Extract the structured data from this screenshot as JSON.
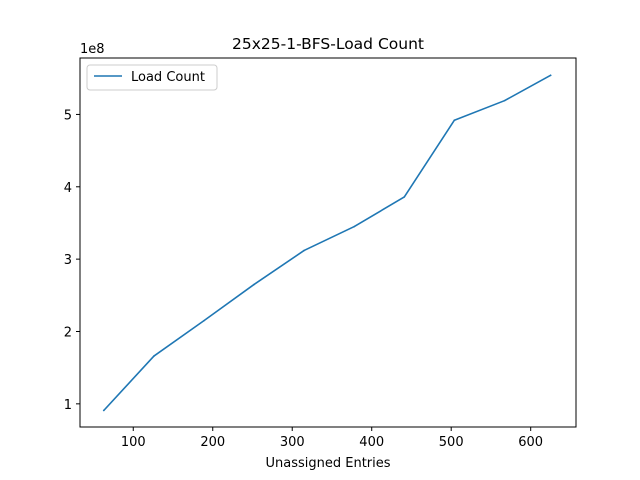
{
  "chart_data": {
    "type": "line",
    "title": "25x25-1-BFS-Load Count",
    "xlabel": "Unassigned Entries",
    "ylabel": "",
    "y_scale_label": "1e8",
    "y_multiplier": 100000000,
    "xlim": [
      33,
      657
    ],
    "ylim": [
      0.68,
      5.78
    ],
    "xticks": [
      100,
      200,
      300,
      400,
      500,
      600
    ],
    "xtick_labels": [
      "100",
      "200",
      "300",
      "400",
      "500",
      "600"
    ],
    "yticks": [
      1,
      2,
      3,
      4,
      5
    ],
    "ytick_labels": [
      "1",
      "2",
      "3",
      "4",
      "5"
    ],
    "legend_position": "upper-left",
    "grid": false,
    "series": [
      {
        "name": "Load Count",
        "color": "#1f77b4",
        "x": [
          63,
          126,
          189,
          252,
          315,
          378,
          441,
          504,
          567,
          625
        ],
        "y": [
          0.91,
          1.66,
          2.15,
          2.65,
          3.12,
          3.45,
          3.86,
          4.92,
          5.19,
          5.54
        ]
      }
    ]
  }
}
